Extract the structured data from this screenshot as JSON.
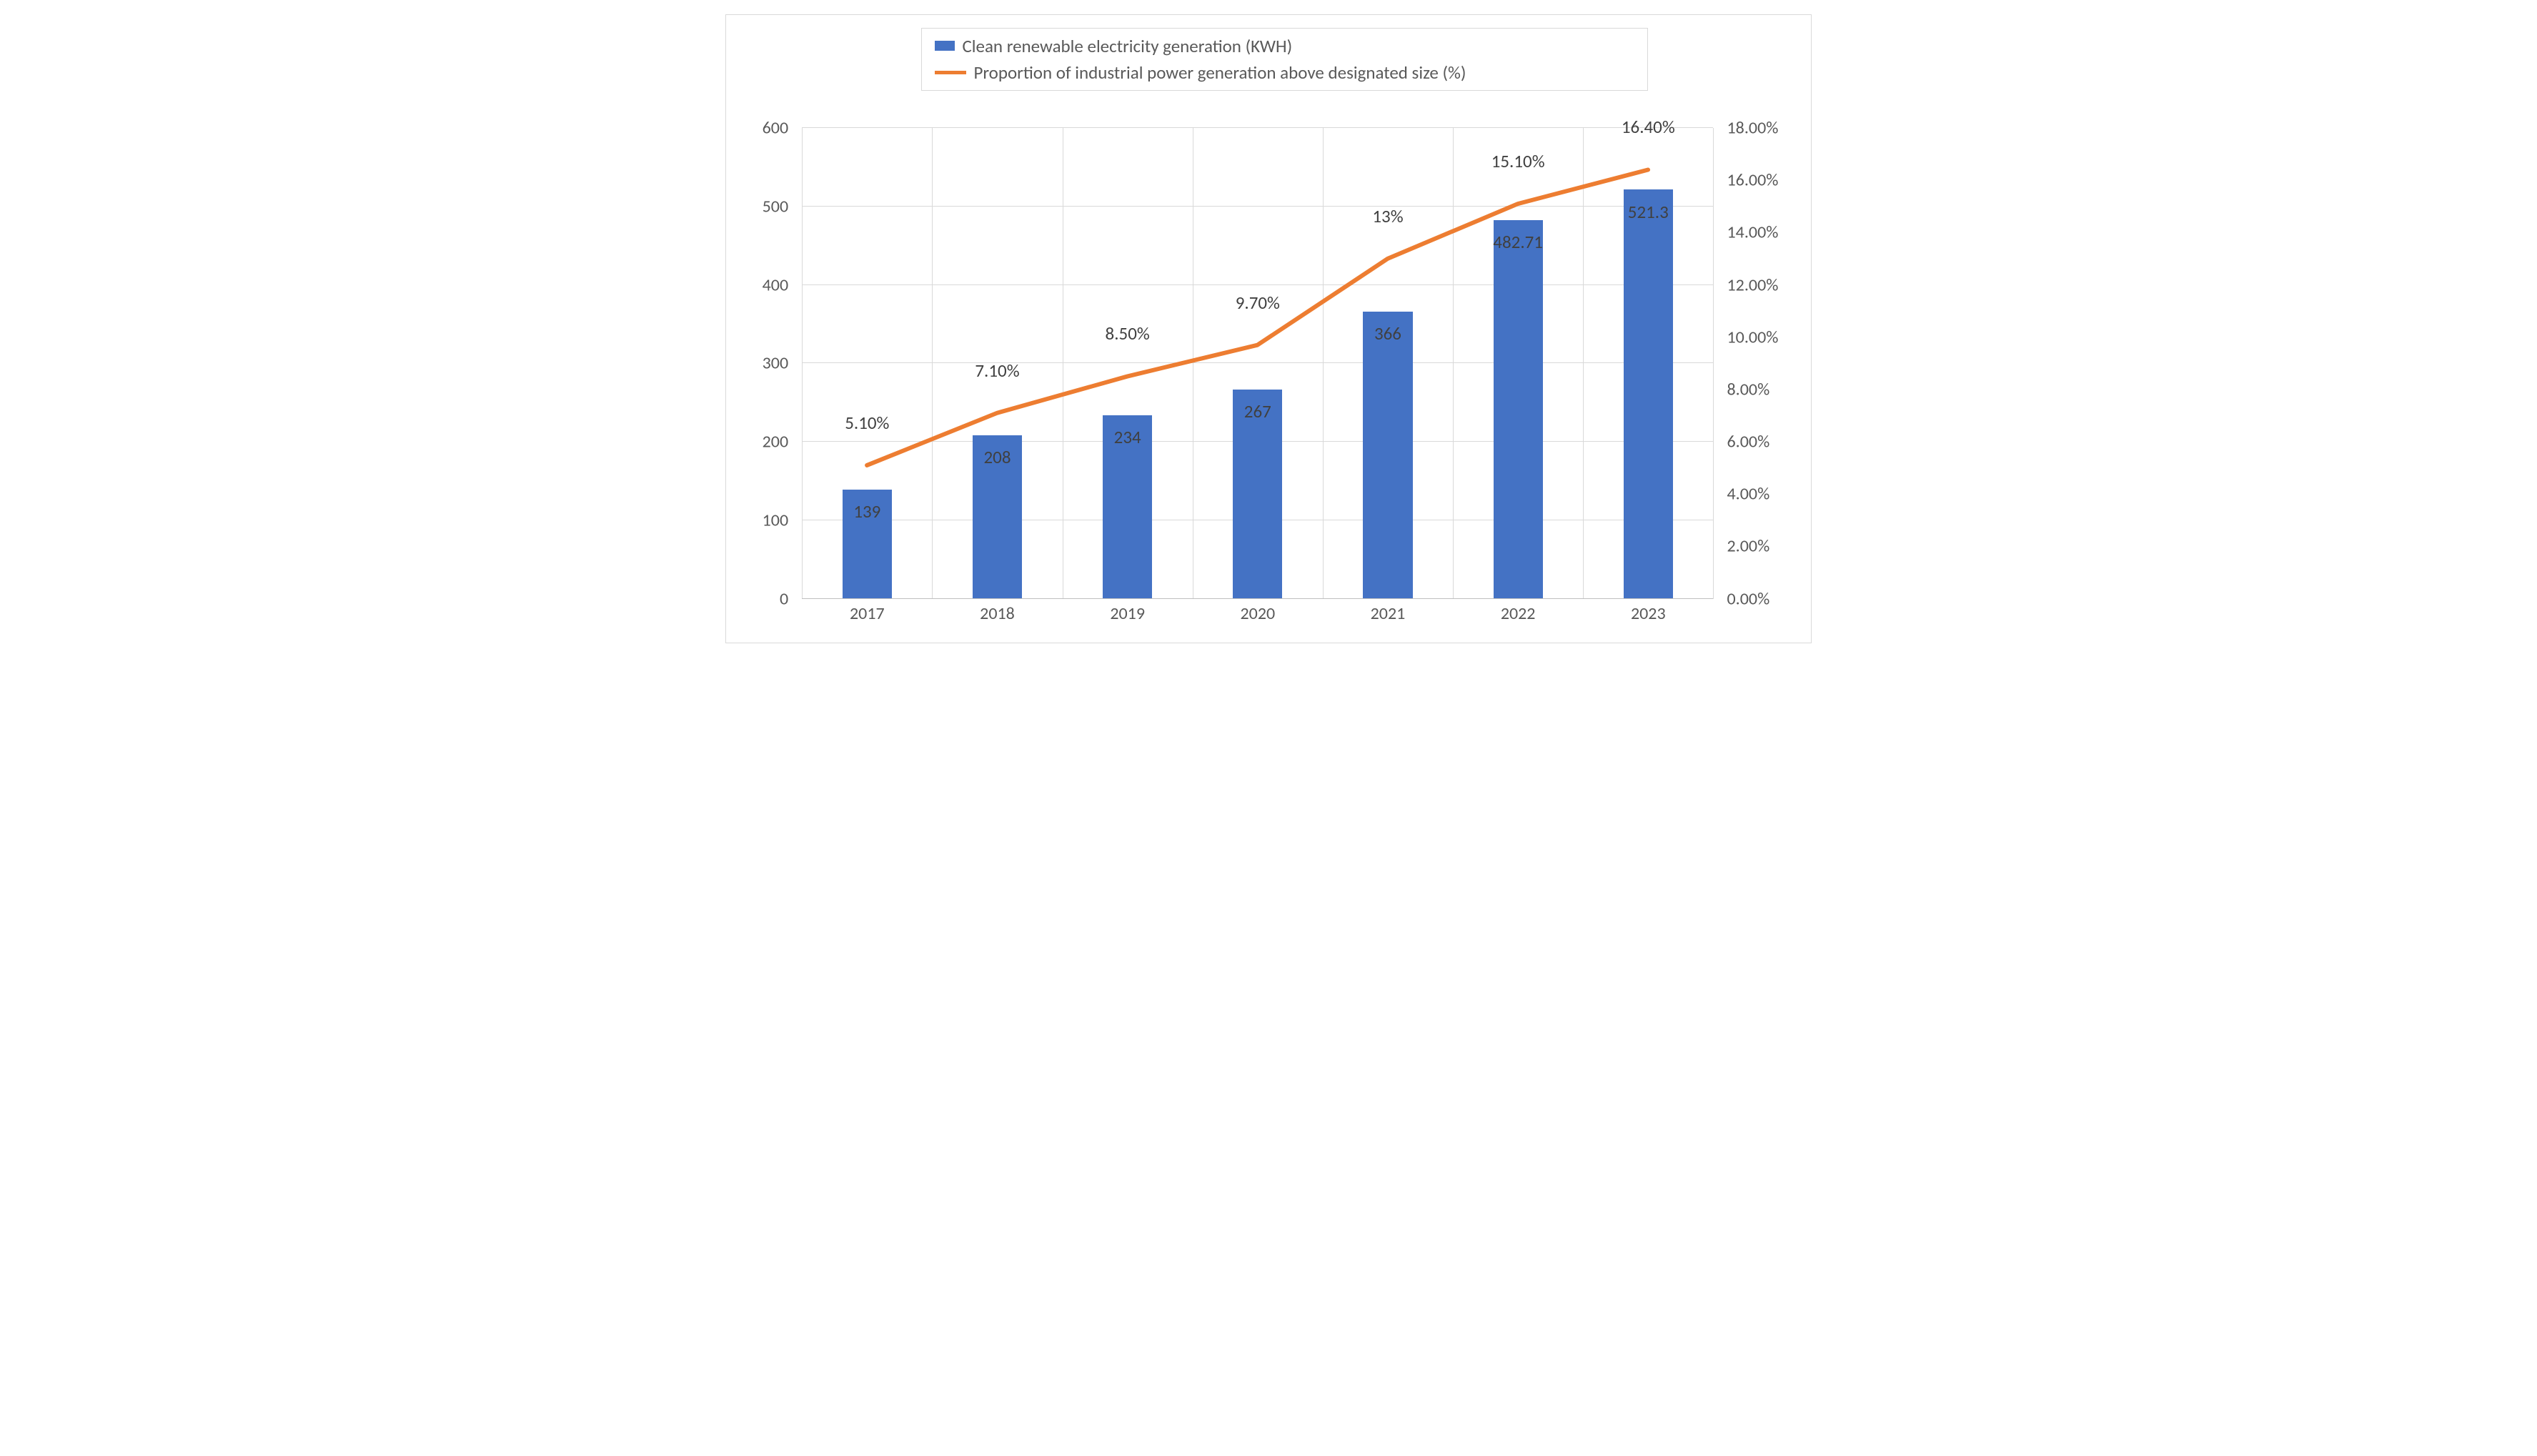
{
  "chart": {
    "type": "bar+line",
    "background_color": "#ffffff",
    "border_color": "#d9d9d9",
    "grid_color": "#d9d9d9",
    "text_color": "#595959",
    "label_color": "#404040",
    "font_family": "Calibri, Arial, sans-serif",
    "axis_fontsize": 24,
    "datalabel_fontsize": 25,
    "legend_fontsize": 25,
    "categories": [
      "2017",
      "2018",
      "2019",
      "2020",
      "2021",
      "2022",
      "2023"
    ],
    "bar_width": 0.38,
    "series": {
      "bars": {
        "name": "Clean renewable electricity generation (KWH)",
        "color": "#4472c4",
        "values": [
          139,
          208,
          234,
          267,
          366,
          482.71,
          521.3
        ],
        "value_labels": [
          "139",
          "208",
          "234",
          "267",
          "366",
          "482.71",
          "521.3"
        ]
      },
      "line": {
        "name": "Proportion of industrial power generation above designated size (%)",
        "color": "#ed7d31",
        "line_width": 6,
        "values": [
          5.1,
          7.1,
          8.5,
          9.7,
          13.0,
          15.1,
          16.4
        ],
        "value_labels": [
          "5.10%",
          "7.10%",
          "8.50%",
          "9.70%",
          "13%",
          "15.10%",
          "16.40%"
        ]
      }
    },
    "y_left": {
      "min": 0,
      "max": 600,
      "step": 100,
      "ticks": [
        "0",
        "100",
        "200",
        "300",
        "400",
        "500",
        "600"
      ]
    },
    "y_right": {
      "min": 0,
      "max": 18,
      "step": 2,
      "ticks": [
        "0.00%",
        "2.00%",
        "4.00%",
        "6.00%",
        "8.00%",
        "10.00%",
        "12.00%",
        "14.00%",
        "16.00%",
        "18.00%"
      ]
    }
  }
}
